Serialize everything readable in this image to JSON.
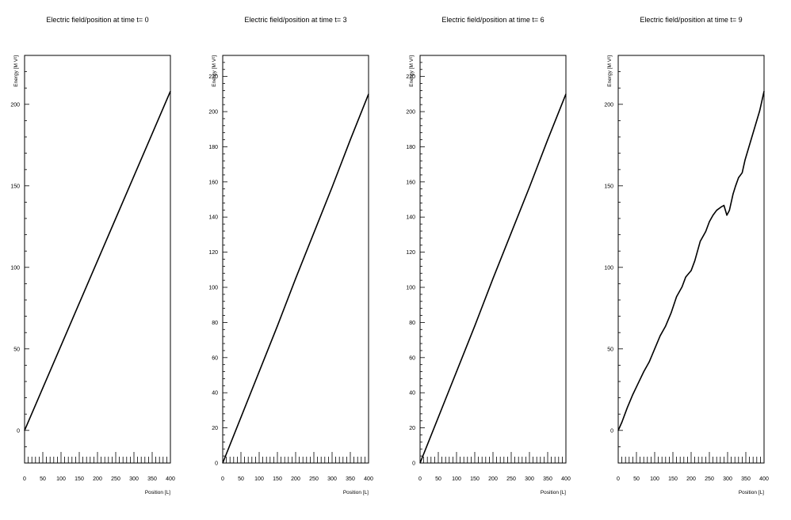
{
  "chart_data": [
    {
      "type": "line",
      "title": "Electric field/position at time t= 0",
      "xlabel": "Position [L]",
      "ylabel": "Energy [M V²]",
      "xlim": [
        0,
        400
      ],
      "ylim": [
        -20,
        230
      ],
      "xticks": [
        0,
        50,
        100,
        150,
        200,
        250,
        300,
        350,
        400
      ],
      "yticks": [
        0,
        50,
        100,
        150,
        200
      ],
      "series": [
        {
          "x": [
            0,
            50,
            100,
            150,
            200,
            250,
            300,
            350,
            400
          ],
          "y": [
            0,
            26,
            52,
            78,
            104,
            130,
            156,
            182,
            208
          ]
        }
      ],
      "grid": false
    },
    {
      "type": "line",
      "title": "Electric field/position at time t= 3",
      "xlabel": "Position [L]",
      "ylabel": "Energy [M V²]",
      "xlim": [
        0,
        400
      ],
      "ylim": [
        0,
        232
      ],
      "xticks": [
        0,
        50,
        100,
        150,
        200,
        250,
        300,
        350,
        400
      ],
      "yticks": [
        0,
        20,
        40,
        60,
        80,
        100,
        120,
        140,
        160,
        180,
        200,
        220
      ],
      "series": [
        {
          "x": [
            0,
            50,
            100,
            150,
            200,
            250,
            300,
            350,
            400
          ],
          "y": [
            0,
            26,
            52,
            78,
            105,
            131,
            157,
            184,
            210
          ]
        }
      ],
      "grid": false
    },
    {
      "type": "line",
      "title": "Electric field/position at time t= 6",
      "xlabel": "Position [L]",
      "ylabel": "Energy [M V²]",
      "xlim": [
        0,
        400
      ],
      "ylim": [
        0,
        232
      ],
      "xticks": [
        0,
        50,
        100,
        150,
        200,
        250,
        300,
        350,
        400
      ],
      "yticks": [
        0,
        20,
        40,
        60,
        80,
        100,
        120,
        140,
        160,
        180,
        200,
        220
      ],
      "series": [
        {
          "x": [
            0,
            50,
            100,
            150,
            200,
            250,
            300,
            350,
            400
          ],
          "y": [
            0,
            26,
            52,
            78,
            105,
            131,
            157,
            184,
            210
          ]
        }
      ],
      "grid": false
    },
    {
      "type": "line",
      "title": "Electric field/position at time t= 9",
      "xlabel": "Position [L]",
      "ylabel": "Energy [M V²]",
      "xlim": [
        0,
        400
      ],
      "ylim": [
        -20,
        230
      ],
      "xticks": [
        0,
        50,
        100,
        150,
        200,
        250,
        300,
        350,
        400
      ],
      "yticks": [
        0,
        50,
        100,
        150,
        200
      ],
      "series": [
        {
          "x": [
            0,
            10,
            25,
            40,
            55,
            70,
            85,
            100,
            115,
            130,
            145,
            160,
            175,
            185,
            200,
            210,
            225,
            240,
            250,
            260,
            270,
            282,
            290,
            298,
            305,
            315,
            322,
            330,
            340,
            348,
            356,
            364,
            372,
            380,
            388,
            394,
            400
          ],
          "y": [
            0,
            5,
            14,
            22,
            29,
            36,
            42,
            50,
            58,
            64,
            72,
            82,
            88,
            94,
            98,
            104,
            116,
            122,
            128,
            132,
            135,
            137,
            138,
            132,
            135,
            145,
            150,
            155,
            158,
            166,
            172,
            178,
            184,
            190,
            196,
            202,
            208
          ]
        }
      ],
      "grid": false
    }
  ]
}
